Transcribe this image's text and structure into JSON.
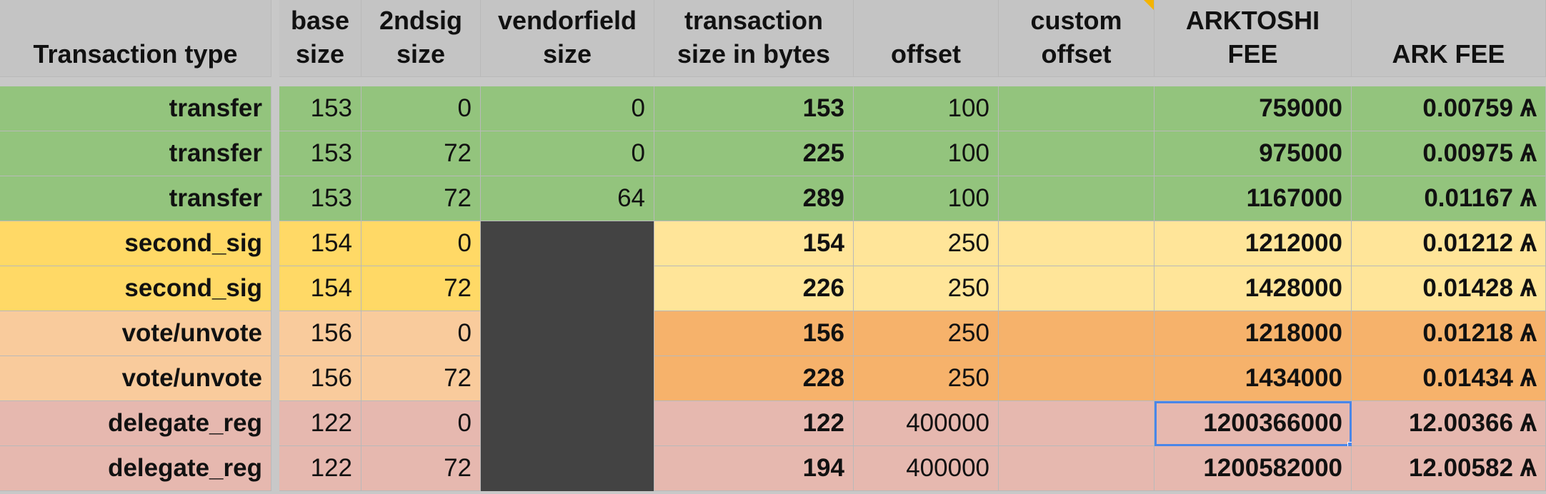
{
  "table": {
    "headers": [
      [
        "Transaction type"
      ],
      [
        "base",
        "size"
      ],
      [
        "2ndsig",
        "size"
      ],
      [
        "vendorfield",
        "size"
      ],
      [
        "transaction",
        "size in bytes"
      ],
      [
        "offset"
      ],
      [
        "custom",
        "offset"
      ],
      [
        "ARKTOSHI",
        "FEE"
      ],
      [
        "ARK FEE"
      ]
    ],
    "rows": [
      {
        "type": "transfer",
        "base_size": 153,
        "sig2_size": 0,
        "vendorfield_size": 0,
        "transaction_size": 153,
        "offset": 100,
        "arktoshi_fee": 759000,
        "ark_fee": "0.00759 Ѧ"
      },
      {
        "type": "transfer",
        "base_size": 153,
        "sig2_size": 72,
        "vendorfield_size": 0,
        "transaction_size": 225,
        "offset": 100,
        "arktoshi_fee": 975000,
        "ark_fee": "0.00975 Ѧ"
      },
      {
        "type": "transfer",
        "base_size": 153,
        "sig2_size": 72,
        "vendorfield_size": 64,
        "transaction_size": 289,
        "offset": 100,
        "arktoshi_fee": 1167000,
        "ark_fee": "0.01167 Ѧ"
      },
      {
        "type": "second_sig",
        "base_size": 154,
        "sig2_size": 0,
        "transaction_size": 154,
        "offset": 250,
        "arktoshi_fee": 1212000,
        "ark_fee": "0.01212 Ѧ"
      },
      {
        "type": "second_sig",
        "base_size": 154,
        "sig2_size": 72,
        "transaction_size": 226,
        "offset": 250,
        "arktoshi_fee": 1428000,
        "ark_fee": "0.01428 Ѧ"
      },
      {
        "type": "vote/unvote",
        "base_size": 156,
        "sig2_size": 0,
        "transaction_size": 156,
        "offset": 250,
        "arktoshi_fee": 1218000,
        "ark_fee": "0.01218 Ѧ"
      },
      {
        "type": "vote/unvote",
        "base_size": 156,
        "sig2_size": 72,
        "transaction_size": 228,
        "offset": 250,
        "arktoshi_fee": 1434000,
        "ark_fee": "0.01434 Ѧ"
      },
      {
        "type": "delegate_reg",
        "base_size": 122,
        "sig2_size": 0,
        "transaction_size": 122,
        "offset": 400000,
        "arktoshi_fee": 1200366000,
        "ark_fee": "12.00366 Ѧ"
      },
      {
        "type": "delegate_reg",
        "base_size": 122,
        "sig2_size": 72,
        "transaction_size": 194,
        "offset": 400000,
        "arktoshi_fee": 1200582000,
        "ark_fee": "12.00582 Ѧ"
      }
    ]
  }
}
